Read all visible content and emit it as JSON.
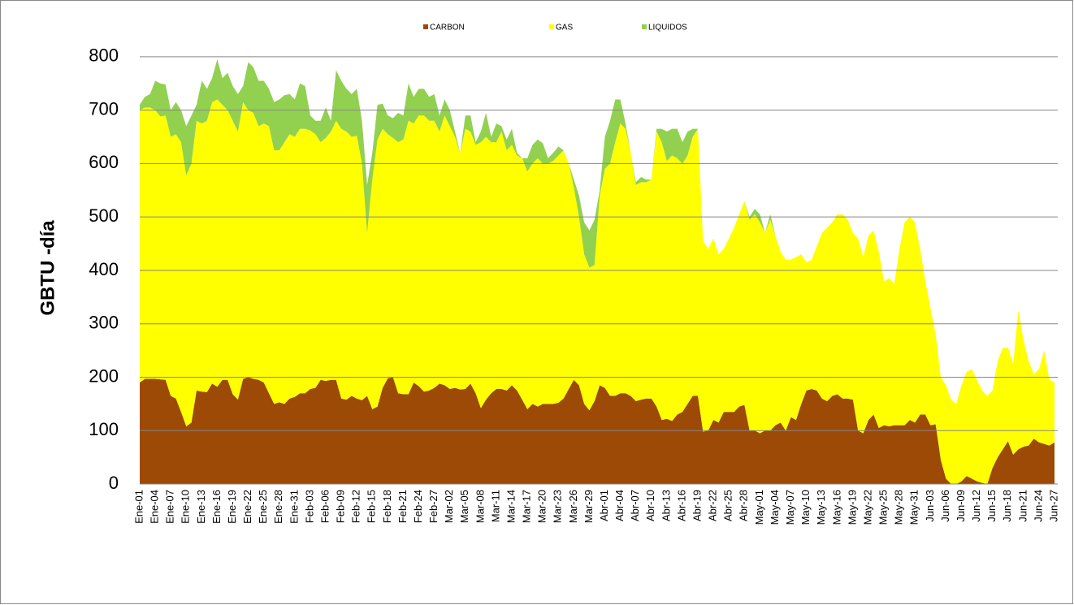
{
  "chart_data": {
    "type": "stacked-area",
    "y_label": "GBTU -día",
    "categories": [
      "Ene-01",
      null,
      null,
      "Ene-04",
      null,
      null,
      "Ene-07",
      null,
      null,
      "Ene-10",
      null,
      null,
      "Ene-13",
      null,
      null,
      "Ene-16",
      null,
      null,
      "Ene-19",
      null,
      null,
      "Ene-22",
      null,
      null,
      "Ene-25",
      null,
      null,
      "Ene-28",
      null,
      null,
      "Ene-31",
      null,
      null,
      "Feb-03",
      null,
      null,
      "Feb-06",
      null,
      null,
      "Feb-09",
      null,
      null,
      "Feb-12",
      null,
      null,
      "Feb-15",
      null,
      null,
      "Feb-18",
      null,
      null,
      "Feb-21",
      null,
      null,
      "Feb-24",
      null,
      null,
      "Feb-27",
      null,
      null,
      "Mar-02",
      null,
      null,
      "Mar-05",
      null,
      null,
      "Mar-08",
      null,
      null,
      "Mar-11",
      null,
      null,
      "Mar-14",
      null,
      null,
      "Mar-17",
      null,
      null,
      "Mar-20",
      null,
      null,
      "Mar-23",
      null,
      null,
      "Mar-26",
      null,
      null,
      "Mar-29",
      null,
      null,
      "Abr-01",
      null,
      null,
      "Abr-04",
      null,
      null,
      "Abr-07",
      null,
      null,
      "Abr-10",
      null,
      null,
      "Abr-13",
      null,
      null,
      "Abr-16",
      null,
      null,
      "Abr-19",
      null,
      null,
      "Abr-22",
      null,
      null,
      "Abr-25",
      null,
      null,
      "Abr-28",
      null,
      null,
      "May-01",
      null,
      null,
      "May-04",
      null,
      null,
      "May-07",
      null,
      null,
      "May-10",
      null,
      null,
      "May-13",
      null,
      null,
      "May-16",
      null,
      null,
      "May-19",
      null,
      null,
      "May-22",
      null,
      null,
      "May-25",
      null,
      null,
      "May-28",
      null,
      null,
      "May-31",
      null,
      null,
      "Jun-03",
      null,
      null,
      "Jun-06",
      null,
      null,
      "Jun-09",
      null,
      null,
      "Jun-12",
      null,
      null,
      "Jun-15",
      null,
      null,
      "Jun-18",
      null,
      null,
      "Jun-21",
      null,
      null,
      "Jun-24",
      null,
      null,
      "Jun-27"
    ],
    "series": [
      {
        "name": "CARBON",
        "color": "#9c4a06",
        "values": [
          190,
          197,
          197,
          197,
          196,
          195,
          165,
          160,
          135,
          108,
          115,
          175,
          173,
          172,
          188,
          182,
          195,
          195,
          168,
          158,
          197,
          200,
          197,
          195,
          190,
          170,
          150,
          153,
          150,
          160,
          163,
          170,
          170,
          178,
          180,
          195,
          193,
          195,
          195,
          160,
          158,
          165,
          160,
          157,
          165,
          140,
          145,
          180,
          198,
          200,
          170,
          168,
          168,
          190,
          183,
          173,
          175,
          180,
          188,
          185,
          178,
          180,
          177,
          178,
          188,
          170,
          142,
          158,
          170,
          178,
          178,
          175,
          185,
          175,
          158,
          140,
          150,
          145,
          150,
          150,
          150,
          152,
          160,
          178,
          195,
          185,
          150,
          138,
          155,
          185,
          180,
          165,
          165,
          170,
          170,
          165,
          155,
          158,
          160,
          160,
          145,
          120,
          122,
          118,
          130,
          135,
          150,
          165,
          165,
          98,
          100,
          120,
          115,
          135,
          135,
          135,
          145,
          148,
          100,
          100,
          95,
          100,
          100,
          110,
          115,
          100,
          125,
          120,
          150,
          175,
          178,
          175,
          160,
          155,
          165,
          168,
          160,
          160,
          158,
          100,
          95,
          120,
          130,
          105,
          110,
          108,
          110,
          110,
          110,
          120,
          115,
          130,
          130,
          110,
          112,
          45,
          10,
          0,
          0,
          5,
          15,
          10,
          5,
          2,
          0,
          30,
          50,
          65,
          80,
          55,
          65,
          70,
          72,
          85,
          78,
          75,
          72,
          78
        ]
      },
      {
        "name": "GAS",
        "color": "#ffff00",
        "values": [
          510,
          508,
          508,
          503,
          492,
          495,
          485,
          495,
          505,
          470,
          485,
          505,
          502,
          508,
          527,
          538,
          515,
          505,
          512,
          502,
          518,
          500,
          498,
          475,
          485,
          500,
          475,
          472,
          490,
          495,
          487,
          495,
          495,
          484,
          475,
          445,
          455,
          465,
          485,
          505,
          502,
          485,
          492,
          443,
          305,
          430,
          500,
          485,
          457,
          448,
          470,
          477,
          512,
          485,
          507,
          517,
          505,
          500,
          472,
          505,
          492,
          470,
          443,
          487,
          472,
          465,
          498,
          492,
          470,
          462,
          482,
          450,
          450,
          440,
          452,
          445,
          450,
          465,
          450,
          450,
          455,
          463,
          465,
          422,
          360,
          315,
          280,
          267,
          255,
          355,
          410,
          435,
          475,
          505,
          495,
          455,
          405,
          407,
          405,
          410,
          515,
          520,
          483,
          497,
          480,
          465,
          465,
          485,
          500,
          357,
          340,
          340,
          315,
          305,
          325,
          345,
          360,
          382,
          395,
          405,
          395,
          370,
          395,
          355,
          320,
          320,
          295,
          305,
          280,
          240,
          242,
          270,
          310,
          325,
          325,
          337,
          345,
          335,
          312,
          360,
          330,
          345,
          345,
          330,
          270,
          277,
          265,
          330,
          380,
          380,
          375,
          310,
          250,
          220,
          168,
          155,
          175,
          158,
          150,
          180,
          195,
          205,
          190,
          173,
          165,
          145,
          180,
          190,
          175,
          170,
          260,
          200,
          158,
          120,
          137,
          175,
          123,
          112
        ]
      },
      {
        "name": "LIQUIDOS",
        "color": "#92d050",
        "values": [
          10,
          20,
          25,
          55,
          62,
          58,
          50,
          60,
          60,
          92,
          90,
          30,
          80,
          60,
          45,
          75,
          50,
          70,
          65,
          70,
          30,
          90,
          85,
          85,
          80,
          70,
          90,
          95,
          88,
          75,
          70,
          85,
          80,
          28,
          25,
          40,
          57,
          20,
          95,
          90,
          80,
          80,
          88,
          80,
          90,
          50,
          65,
          47,
          35,
          37,
          55,
          45,
          70,
          50,
          50,
          50,
          45,
          50,
          30,
          30,
          30,
          10,
          0,
          25,
          30,
          5,
          20,
          45,
          10,
          35,
          10,
          20,
          30,
          5,
          0,
          25,
          35,
          35,
          38,
          10,
          15,
          17,
          0,
          0,
          15,
          40,
          60,
          70,
          85,
          10,
          60,
          80,
          80,
          45,
          10,
          0,
          5,
          10,
          5,
          0,
          5,
          25,
          55,
          50,
          55,
          40,
          45,
          15,
          0,
          0,
          0,
          0,
          0,
          0,
          0,
          0,
          0,
          0,
          5,
          10,
          15,
          0,
          10,
          0,
          0,
          0,
          0,
          0,
          0,
          0,
          0,
          0,
          0,
          0,
          0,
          0,
          0,
          0,
          0,
          0,
          0,
          0,
          0,
          0,
          0,
          0,
          0,
          0,
          0,
          0,
          0,
          0,
          0,
          0,
          0,
          0,
          0,
          0,
          0,
          0,
          0,
          0,
          0,
          0,
          0,
          0,
          0,
          0,
          0,
          0,
          0,
          0,
          0,
          0,
          0,
          0,
          0,
          0
        ]
      }
    ],
    "ylim": [
      0,
      850
    ],
    "yticks": [
      0,
      100,
      200,
      300,
      400,
      500,
      600,
      700,
      800
    ],
    "grid": true,
    "legend": "top"
  }
}
